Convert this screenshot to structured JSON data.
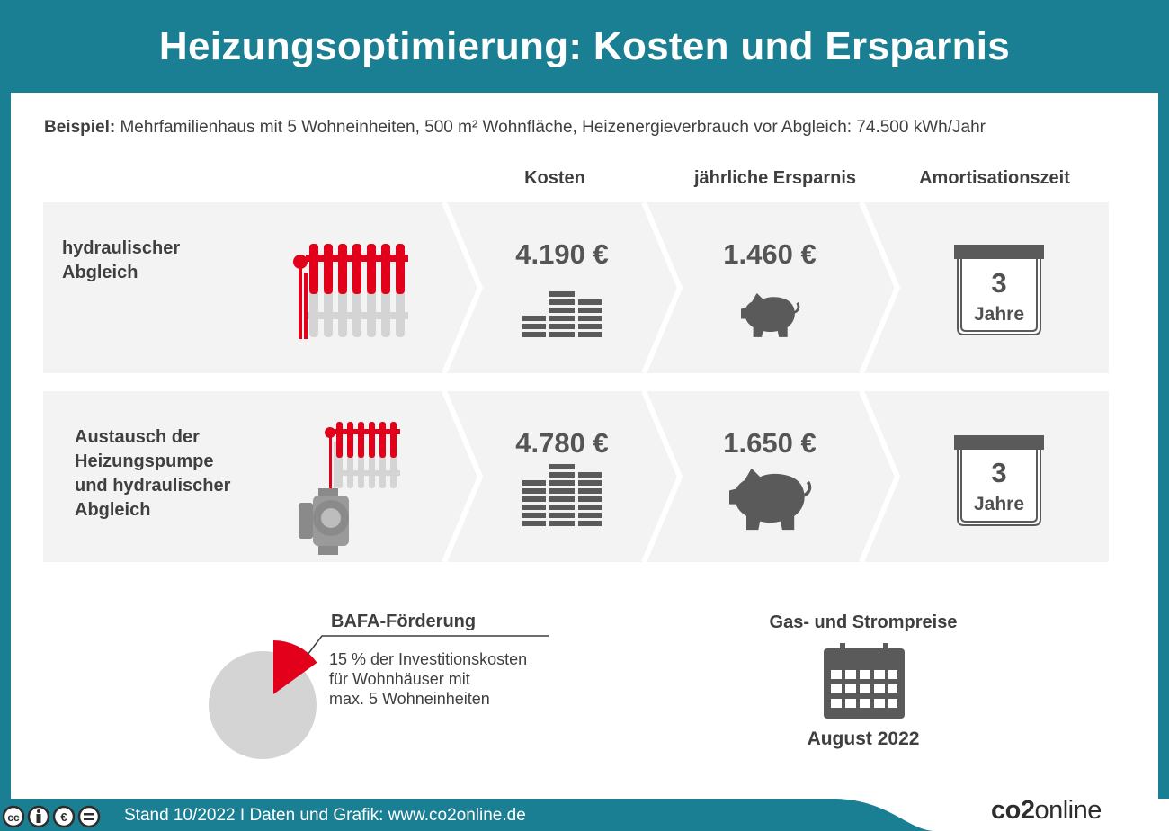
{
  "title": "Heizungsoptimierung: Kosten und Ersparnis",
  "example": {
    "label": "Beispiel:",
    "text": "Mehrfamilienhaus mit 5 Wohneinheiten, 500 m² Wohnfläche, Heizenergieverbrauch vor Abgleich: 74.500 kWh/Jahr"
  },
  "columns": {
    "cost": "Kosten",
    "savings": "jährliche Ersparnis",
    "payback": "Amortisationszeit"
  },
  "rows": [
    {
      "label_lines": [
        "hydraulischer",
        "Abgleich"
      ],
      "cost": "4.190 €",
      "savings": "1.460 €",
      "payback_number": "3",
      "payback_unit": "Jahre"
    },
    {
      "label_lines": [
        "Austausch der",
        "Heizungspumpe",
        "und hydraulischer",
        "Abgleich"
      ],
      "cost": "4.780 €",
      "savings": "1.650 €",
      "payback_number": "3",
      "payback_unit": "Jahre"
    }
  ],
  "bafa": {
    "title": "BAFA-Förderung",
    "lines": [
      "15 % der Investitionskosten",
      "für Wohnhäuser mit",
      "max. 5 Wohneinheiten"
    ],
    "share_percent": 15
  },
  "prices": {
    "title": "Gas- und Strompreise",
    "date": "August 2022"
  },
  "footer": {
    "text": "Stand 10/2022   I   Daten und Grafik: www.co2online.de",
    "logo_a": "co2",
    "logo_b": "online"
  },
  "colors": {
    "teal": "#1a7f92",
    "red": "#e2001a",
    "gray_bg": "#f3f3f3",
    "icon_gray": "#5a5a5a"
  },
  "icons": [
    "radiator-icon",
    "heating-pump-icon",
    "coin-stack-icon",
    "piggy-bank-icon",
    "calendar-icon",
    "pie-icon",
    "cc-license-icons"
  ]
}
